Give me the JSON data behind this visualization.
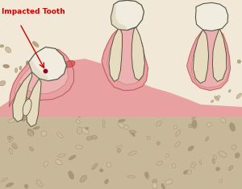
{
  "title": "Impacted Tooth",
  "title_color": "#cc0000",
  "bg_color": "#f5efe0",
  "bone_color": "#c8b89a",
  "gum_color": "#e8a0a0",
  "gum_dark": "#c06060",
  "gum_inner": "#f0c0c0",
  "tooth_white": "#f0ece0",
  "tooth_cream": "#e8dcc0",
  "tooth_shadow": "#d4c8a8",
  "outline_color": "#555544",
  "arrow_color": "#cc0000",
  "dot_color": "#880022",
  "stone_colors": [
    "#b8a888",
    "#c8b898",
    "#a89878",
    "#d0c0a0"
  ],
  "figsize": [
    3.0,
    2.35
  ],
  "dpi": 100
}
